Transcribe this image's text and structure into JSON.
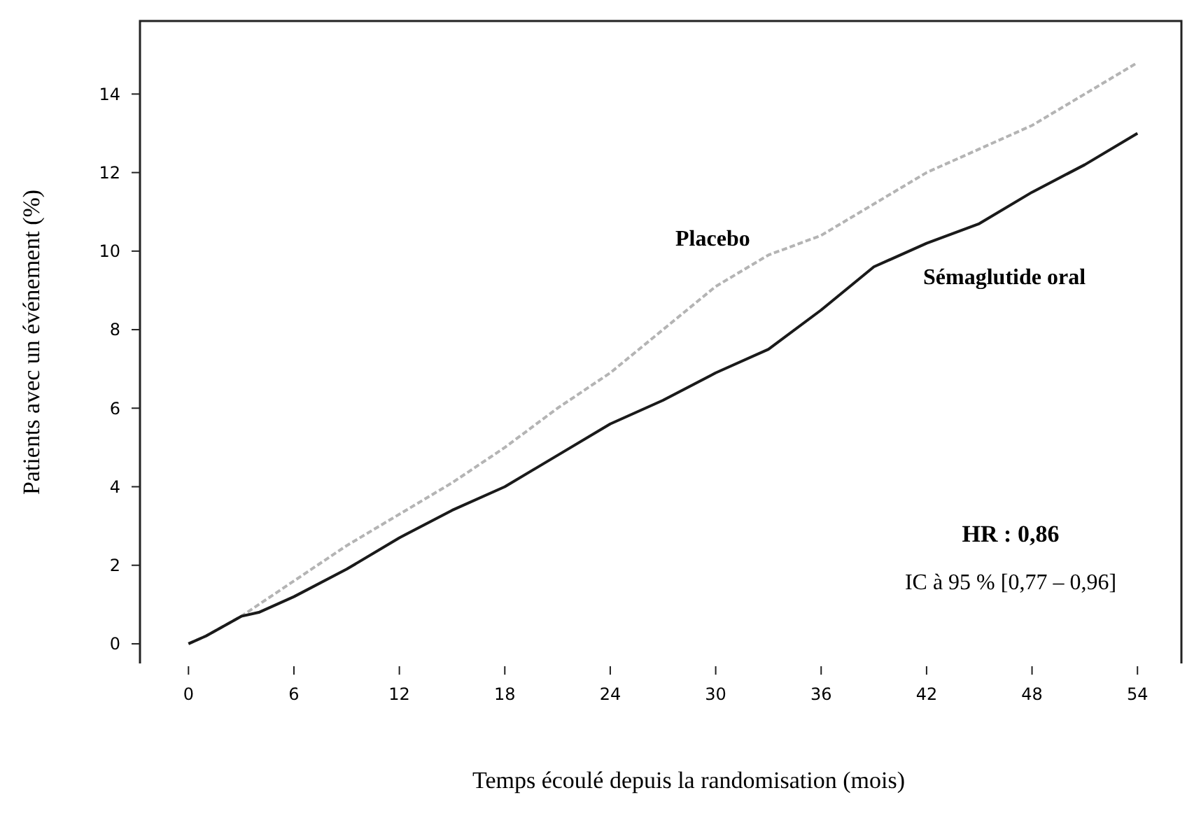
{
  "chart_data": {
    "type": "line",
    "xlabel": "Temps écoulé depuis la randomisation (mois)",
    "ylabel": "Patients avec un événement (%)",
    "xlim": [
      -2.76,
      56.5
    ],
    "ylim": [
      -0.5,
      15.86
    ],
    "xticks": [
      0,
      6,
      12,
      18,
      24,
      30,
      36,
      42,
      48,
      54
    ],
    "yticks": [
      0,
      2,
      4,
      6,
      8,
      10,
      12,
      14
    ],
    "grid": false,
    "marker": "none",
    "annotations": [
      "HR : 0,86",
      "IC à 95 % [0,77 – 0,96]"
    ],
    "series": [
      {
        "name": "Placebo",
        "color": "#b4b4b4",
        "line_style": "dashed",
        "x": [
          0,
          1,
          3,
          6,
          9,
          12,
          15,
          18,
          21,
          24,
          27,
          30,
          33,
          36,
          39,
          42,
          45,
          48,
          51,
          54
        ],
        "values": [
          0,
          0.2,
          0.7,
          1.6,
          2.5,
          3.3,
          4.1,
          5.0,
          6.0,
          6.9,
          8.0,
          9.1,
          9.9,
          10.4,
          11.2,
          12.0,
          12.6,
          13.2,
          14.0,
          14.8
        ]
      },
      {
        "name": "Sémaglutide oral",
        "color": "#1a1a1a",
        "line_style": "solid",
        "x": [
          0,
          1,
          3,
          4,
          6,
          9,
          12,
          15,
          18,
          21,
          24,
          27,
          30,
          33,
          36,
          39,
          42,
          45,
          48,
          51,
          54
        ],
        "values": [
          0,
          0.2,
          0.7,
          0.8,
          1.2,
          1.9,
          2.7,
          3.4,
          4.0,
          4.8,
          5.6,
          6.2,
          6.9,
          7.5,
          8.5,
          9.6,
          10.2,
          10.7,
          11.5,
          12.2,
          13.0
        ]
      }
    ]
  }
}
